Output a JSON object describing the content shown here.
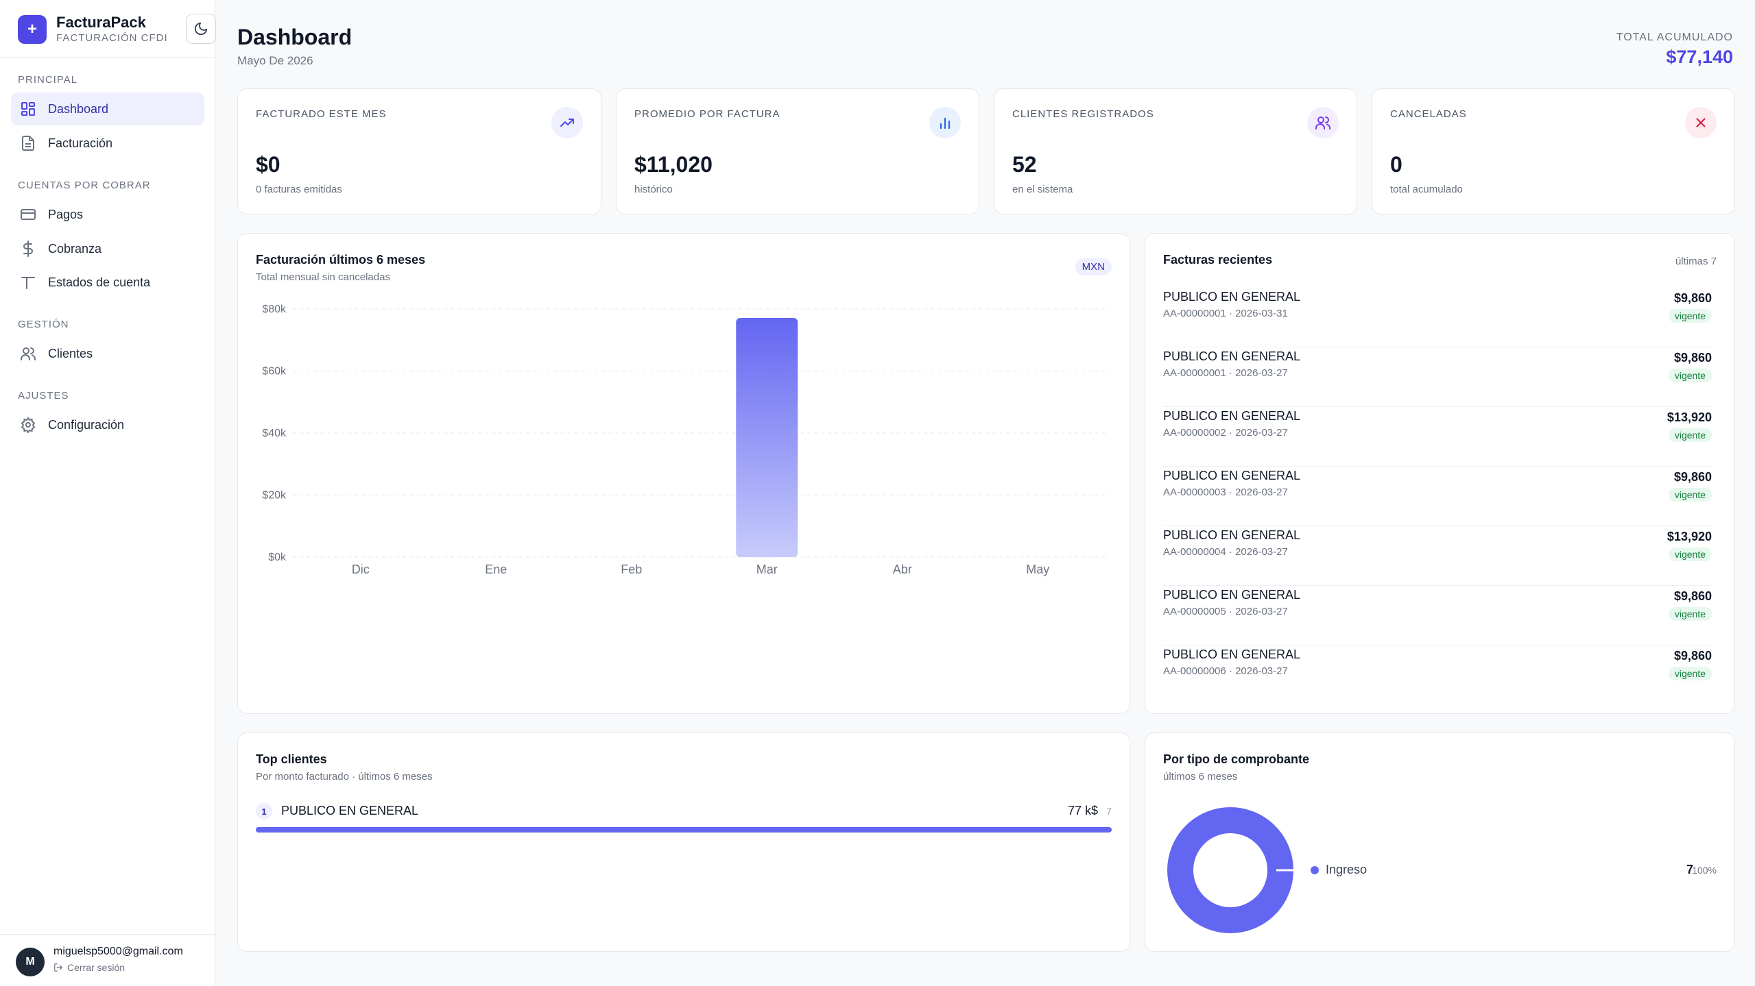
{
  "brand": {
    "name": "FacturaPack",
    "subtitle": "FACTURACIÓN CFDI",
    "logo_icon": "plus-icon",
    "theme_icon": "moon-icon"
  },
  "sidebar": {
    "sections": [
      {
        "title": "PRINCIPAL",
        "items": [
          {
            "label": "Dashboard",
            "icon": "grid-icon",
            "active": true
          },
          {
            "label": "Facturación",
            "icon": "document-icon"
          }
        ]
      },
      {
        "title": "CUENTAS POR COBRAR",
        "items": [
          {
            "label": "Pagos",
            "icon": "credit-card-icon"
          },
          {
            "label": "Cobranza",
            "icon": "dollar-icon"
          },
          {
            "label": "Estados de cuenta",
            "icon": "statement-icon"
          }
        ]
      },
      {
        "title": "GESTIÓN",
        "items": [
          {
            "label": "Clientes",
            "icon": "users-icon"
          }
        ]
      },
      {
        "title": "AJUSTES",
        "items": [
          {
            "label": "Configuración",
            "icon": "gear-icon"
          }
        ]
      }
    ],
    "user": {
      "initial": "M",
      "email": "miguelsp5000@gmail.com",
      "logout_label": "Cerrar sesión"
    }
  },
  "header": {
    "title": "Dashboard",
    "subtitle": "Mayo De 2026",
    "total_label": "TOTAL ACUMULADO",
    "total_value": "$77,140"
  },
  "stats": [
    {
      "label": "FACTURADO ESTE MES",
      "value": "$0",
      "note": "0 facturas emitidas",
      "icon": "trending-up-icon",
      "icon_bg": "#eef0fd",
      "icon_color": "#4f46e5"
    },
    {
      "label": "PROMEDIO POR FACTURA",
      "value": "$11,020",
      "note": "histórico",
      "icon": "bar-chart-icon",
      "icon_bg": "#eaf1fe",
      "icon_color": "#2563eb"
    },
    {
      "label": "CLIENTES REGISTRADOS",
      "value": "52",
      "note": "en el sistema",
      "icon": "users-icon",
      "icon_bg": "#f3edfe",
      "icon_color": "#7c3aed"
    },
    {
      "label": "CANCELADAS",
      "value": "0",
      "note": "total acumulado",
      "icon": "x-icon",
      "icon_bg": "#fdecef",
      "icon_color": "#e11d48"
    }
  ],
  "revenue_chart": {
    "title": "Facturación últimos 6 meses",
    "subtitle": "Total mensual sin canceladas",
    "currency_badge": "MXN"
  },
  "chart_data": {
    "type": "bar",
    "title": "Facturación últimos 6 meses",
    "subtitle": "Total mensual sin canceladas",
    "categories": [
      "Dic",
      "Ene",
      "Feb",
      "Mar",
      "Abr",
      "May"
    ],
    "values": [
      0,
      0,
      0,
      77140,
      0,
      0
    ],
    "yticks": [
      "$0k",
      "$20k",
      "$40k",
      "$60k",
      "$80k"
    ],
    "ylim": [
      0,
      80000
    ],
    "grid": true,
    "bar_color_top": "#6366f1",
    "bar_color_bottom": "#c7cbfb"
  },
  "recent": {
    "title": "Facturas recientes",
    "count_label": "últimas 7",
    "items": [
      {
        "name": "PUBLICO EN GENERAL",
        "meta": "AA-00000001 · 2026-03-31",
        "amount": "$9,860",
        "status": "vigente"
      },
      {
        "name": "PUBLICO EN GENERAL",
        "meta": "AA-00000001 · 2026-03-27",
        "amount": "$9,860",
        "status": "vigente"
      },
      {
        "name": "PUBLICO EN GENERAL",
        "meta": "AA-00000002 · 2026-03-27",
        "amount": "$13,920",
        "status": "vigente"
      },
      {
        "name": "PUBLICO EN GENERAL",
        "meta": "AA-00000003 · 2026-03-27",
        "amount": "$9,860",
        "status": "vigente"
      },
      {
        "name": "PUBLICO EN GENERAL",
        "meta": "AA-00000004 · 2026-03-27",
        "amount": "$13,920",
        "status": "vigente"
      },
      {
        "name": "PUBLICO EN GENERAL",
        "meta": "AA-00000005 · 2026-03-27",
        "amount": "$9,860",
        "status": "vigente"
      },
      {
        "name": "PUBLICO EN GENERAL",
        "meta": "AA-00000006 · 2026-03-27",
        "amount": "$9,860",
        "status": "vigente"
      }
    ]
  },
  "top_clients": {
    "title": "Top clientes",
    "subtitle": "Por monto facturado · últimos 6 meses",
    "items": [
      {
        "rank": "1",
        "name": "PUBLICO EN GENERAL",
        "amount": "77 k$",
        "count": "7",
        "share": 1.0
      }
    ]
  },
  "by_type": {
    "title": "Por tipo de comprobante",
    "subtitle": "últimos 6 meses",
    "items": [
      {
        "label": "Ingreso",
        "value": "7",
        "pct": "100%",
        "fraction": 1.0,
        "color": "#6366f1"
      }
    ]
  }
}
